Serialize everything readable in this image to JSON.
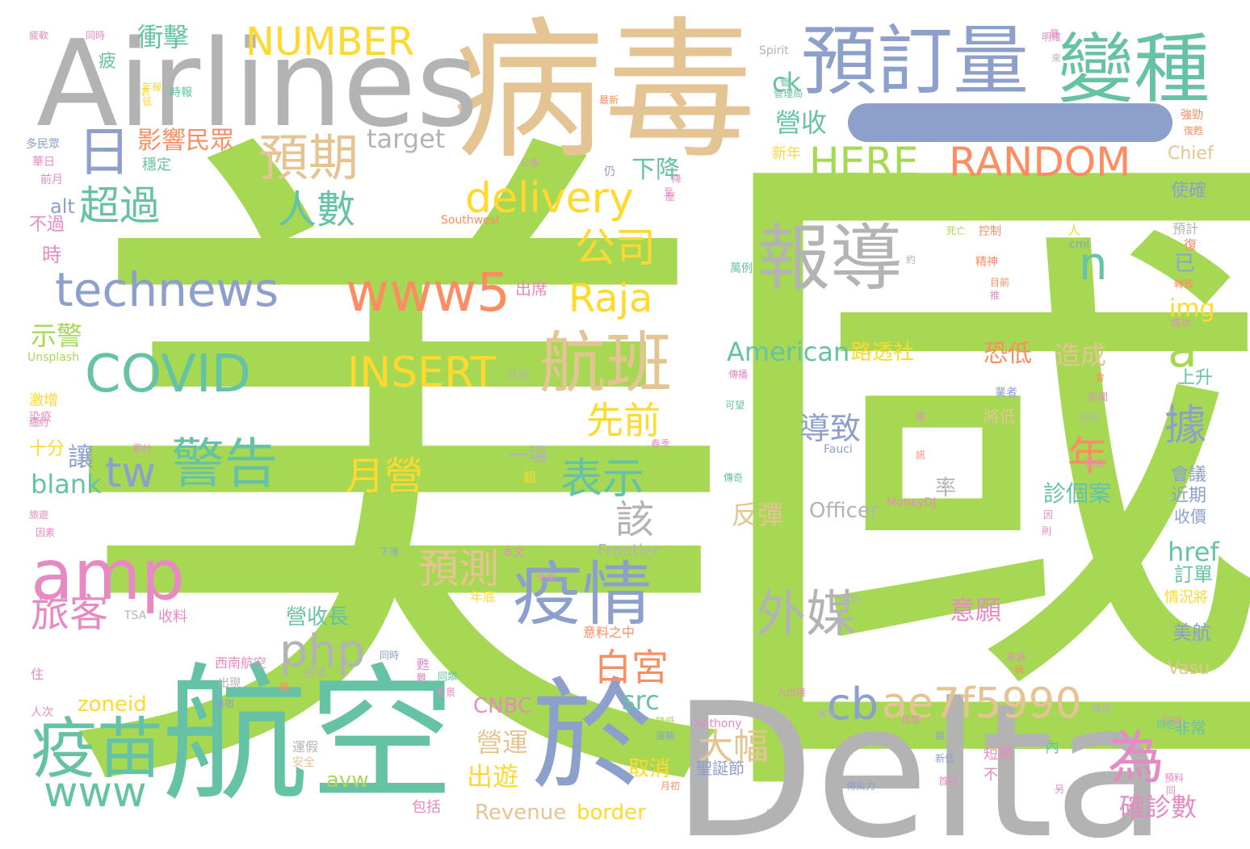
{
  "word_cloud": {
    "words": [
      {
        "text": "美國",
        "color": "#a6d854"
      },
      {
        "text": "Delta",
        "color": "#b3b3b3"
      },
      {
        "text": "病毒",
        "color": "#e5c494"
      },
      {
        "text": "航空",
        "color": "#66c2a5"
      },
      {
        "text": "Airlines",
        "color": "#b3b3b3"
      },
      {
        "text": "預訂量",
        "color": "#8da0cb"
      },
      {
        "text": "變種",
        "color": "#66c2a5"
      },
      {
        "text": "於",
        "color": "#8da0cb"
      },
      {
        "text": "疫苗",
        "color": "#66c2a5"
      },
      {
        "text": "疫情",
        "color": "#8da0cb"
      },
      {
        "text": "報導",
        "color": "#b3b3b3"
      },
      {
        "text": "amp",
        "color": "#e78ac3"
      },
      {
        "text": "航班",
        "color": "#e5c494"
      },
      {
        "text": "technews",
        "color": "#8da0cb"
      },
      {
        "text": "www5",
        "color": "#fc8d62"
      },
      {
        "text": "COVID",
        "color": "#66c2a5"
      },
      {
        "text": "delivery",
        "color": "#ffd92f"
      },
      {
        "text": "HERE",
        "color": "#a6d854"
      },
      {
        "text": "RANDOM",
        "color": "#fc8d62"
      },
      {
        "text": "NUMBER",
        "color": "#ffd92f"
      },
      {
        "text": "ae7f5990",
        "color": "#e5c494"
      },
      {
        "text": "警告",
        "color": "#66c2a5"
      },
      {
        "text": "預期",
        "color": "#e5c494"
      },
      {
        "text": "外媒",
        "color": "#b3b3b3"
      },
      {
        "text": "www",
        "color": "#66c2a5"
      },
      {
        "text": "INSERT",
        "color": "#ffd92f"
      },
      {
        "text": "php",
        "color": "#b3b3b3"
      },
      {
        "text": "Raja",
        "color": "#ffd92f"
      },
      {
        "text": "為",
        "color": "#e78ac3"
      },
      {
        "text": "超過",
        "color": "#66c2a5"
      },
      {
        "text": "人數",
        "color": "#66c2a5"
      },
      {
        "text": "公司",
        "color": "#ffd92f"
      },
      {
        "text": "旅客",
        "color": "#e78ac3"
      },
      {
        "text": "預測",
        "color": "#e5c494"
      },
      {
        "text": "月營",
        "color": "#ffd92f"
      },
      {
        "text": "月",
        "color": "#a6d854"
      },
      {
        "text": "tw",
        "color": "#8da0cb"
      },
      {
        "text": "表示",
        "color": "#66c2a5"
      },
      {
        "text": "cb",
        "color": "#8da0cb"
      },
      {
        "text": "日",
        "color": "#8da0cb"
      },
      {
        "text": "據",
        "color": "#8da0cb"
      },
      {
        "text": "n",
        "color": "#66c2a5"
      },
      {
        "text": "a",
        "color": "#a6d854"
      },
      {
        "text": "年",
        "color": "#fc8d62"
      },
      {
        "text": "白宮",
        "color": "#fc8d62"
      },
      {
        "text": "先前",
        "color": "#ffd92f"
      },
      {
        "text": "該",
        "color": "#b3b3b3"
      },
      {
        "text": "大幅",
        "color": "#e5c494"
      },
      {
        "text": "導致",
        "color": "#8da0cb"
      },
      {
        "text": "American",
        "color": "#66c2a5"
      },
      {
        "text": "影響民眾",
        "color": "#fc8d62"
      },
      {
        "text": "衝擊",
        "color": "#66c2a5"
      },
      {
        "text": "target",
        "color": "#b3b3b3"
      },
      {
        "text": "下降",
        "color": "#66c2a5"
      },
      {
        "text": "營收",
        "color": "#66c2a5"
      },
      {
        "text": "ck",
        "color": "#66c2a5"
      },
      {
        "text": "示警",
        "color": "#a6d854"
      },
      {
        "text": "讓",
        "color": "#8da0cb"
      },
      {
        "text": "blank",
        "color": "#66c2a5"
      },
      {
        "text": "alt",
        "color": "#8da0cb"
      },
      {
        "text": "不過",
        "color": "#e78ac3"
      },
      {
        "text": "時",
        "color": "#e78ac3"
      },
      {
        "text": "十分",
        "color": "#ffd92f"
      },
      {
        "text": "對",
        "color": "#a6d854"
      },
      {
        "text": "營收長",
        "color": "#66c2a5"
      },
      {
        "text": "一場",
        "color": "#b3b3b3"
      },
      {
        "text": "路透社",
        "color": "#ffd92f"
      },
      {
        "text": "恐低",
        "color": "#fc8d62"
      },
      {
        "text": "造成",
        "color": "#e5c494"
      },
      {
        "text": "反彈",
        "color": "#e5c494"
      },
      {
        "text": "Officer",
        "color": "#b3b3b3"
      },
      {
        "text": "意願",
        "color": "#e78ac3"
      },
      {
        "text": "率",
        "color": "#b3b3b3"
      },
      {
        "text": "診個案",
        "color": "#66c2a5"
      },
      {
        "text": "img",
        "color": "#ffd92f"
      },
      {
        "text": "href",
        "color": "#66c2a5"
      },
      {
        "text": "src",
        "color": "#66c2a5"
      },
      {
        "text": "zoneid",
        "color": "#ffd92f"
      },
      {
        "text": "avw",
        "color": "#a6d854"
      },
      {
        "text": "出遊",
        "color": "#ffd92f"
      },
      {
        "text": "營運",
        "color": "#e5c494"
      },
      {
        "text": "取消",
        "color": "#ffd92f"
      },
      {
        "text": "CNBC",
        "color": "#e78ac3"
      },
      {
        "text": "border",
        "color": "#ffd92f"
      },
      {
        "text": "Revenue",
        "color": "#e5c494"
      },
      {
        "text": "確診數",
        "color": "#e78ac3"
      },
      {
        "text": "Vasu",
        "color": "#e5c494"
      },
      {
        "text": "Frontier",
        "color": "#b3b3b3"
      },
      {
        "text": "Chief",
        "color": "#e5c494"
      },
      {
        "text": "Spirit",
        "color": "#b3b3b3"
      },
      {
        "text": "Southwest",
        "color": "#fc8d62"
      },
      {
        "text": "Unsplash",
        "color": "#a6d854"
      },
      {
        "text": "Fauci",
        "color": "#8da0cb"
      },
      {
        "text": "MoneyDJ",
        "color": "#e78ac3"
      },
      {
        "text": "Anthony",
        "color": "#e78ac3"
      },
      {
        "text": "TSA",
        "color": "#b3b3b3"
      },
      {
        "text": "cmi",
        "color": "#8da0cb"
      },
      {
        "text": "美航",
        "color": "#8da0cb"
      },
      {
        "text": "訂單",
        "color": "#66c2a5"
      },
      {
        "text": "收價",
        "color": "#8da0cb"
      },
      {
        "text": "近期",
        "color": "#8da0cb"
      },
      {
        "text": "會議",
        "color": "#8da0cb"
      },
      {
        "text": "上升",
        "color": "#66c2a5"
      },
      {
        "text": "使確",
        "color": "#8da0cb"
      },
      {
        "text": "預計",
        "color": "#b3b3b3"
      },
      {
        "text": "已",
        "color": "#8da0cb"
      },
      {
        "text": "新年",
        "color": "#ffd92f"
      },
      {
        "text": "出席",
        "color": "#e78ac3"
      },
      {
        "text": "收料",
        "color": "#e78ac3"
      },
      {
        "text": "非常",
        "color": "#66c2a5"
      },
      {
        "text": "短期",
        "color": "#e78ac3"
      },
      {
        "text": "將低",
        "color": "#e5c494"
      },
      {
        "text": "激增",
        "color": "#ffd92f"
      },
      {
        "text": "染疫",
        "color": "#e78ac3"
      },
      {
        "text": "穩定",
        "color": "#66c2a5"
      },
      {
        "text": "疲",
        "color": "#66c2a5"
      },
      {
        "text": "年底",
        "color": "#ffd92f"
      },
      {
        "text": "西南航空",
        "color": "#e78ac3"
      },
      {
        "text": "聖誕節",
        "color": "#8da0cb"
      },
      {
        "text": "意料之中",
        "color": "#fc8d62"
      },
      {
        "text": "包括",
        "color": "#e78ac3"
      },
      {
        "text": "運假",
        "color": "#b3b3b3"
      },
      {
        "text": "安全",
        "color": "#e5c494"
      },
      {
        "text": "不",
        "color": "#e78ac3"
      },
      {
        "text": "內",
        "color": "#66c2a5"
      },
      {
        "text": "情況將",
        "color": "#ffd92f"
      },
      {
        "text": "人",
        "color": "#ffd92f"
      },
      {
        "text": "住",
        "color": "#e78ac3"
      },
      {
        "text": "人次",
        "color": "#e78ac3"
      },
      {
        "text": "超",
        "color": "#ffd92f"
      },
      {
        "text": "本文",
        "color": "#e78ac3"
      },
      {
        "text": "下滑",
        "color": "#8da0cb"
      },
      {
        "text": "多民眾",
        "color": "#8da0cb"
      },
      {
        "text": "華日",
        "color": "#e78ac3"
      },
      {
        "text": "前月",
        "color": "#e78ac3"
      },
      {
        "text": "時報",
        "color": "#66c2a5"
      },
      {
        "text": "同時",
        "color": "#e78ac3"
      },
      {
        "text": "年報",
        "color": "#ffd92f"
      },
      {
        "text": "管理局",
        "color": "#66c2a5"
      },
      {
        "text": "最新",
        "color": "#fc8d62"
      },
      {
        "text": "公布",
        "color": "#e78ac3"
      },
      {
        "text": "仍",
        "color": "#8da0cb"
      },
      {
        "text": "至",
        "color": "#e78ac3"
      },
      {
        "text": "約",
        "color": "#b3b3b3"
      },
      {
        "text": "死亡",
        "color": "#a6d854"
      },
      {
        "text": "控制",
        "color": "#fc8d62"
      },
      {
        "text": "精神",
        "color": "#fc8d62"
      },
      {
        "text": "目前",
        "color": "#fc8d62"
      },
      {
        "text": "萬例",
        "color": "#66c2a5"
      },
      {
        "text": "轉載",
        "color": "#fc8d62"
      },
      {
        "text": "成功",
        "color": "#e78ac3"
      },
      {
        "text": "復",
        "color": "#fc8d62"
      },
      {
        "text": "強勁",
        "color": "#fc8d62"
      },
      {
        "text": "復甦",
        "color": "#fc8d62"
      },
      {
        "text": "來",
        "color": "#b3b3b3"
      },
      {
        "text": "日益",
        "color": "#b3b3b3"
      },
      {
        "text": "防疫",
        "color": "#e78ac3"
      },
      {
        "text": "新聞",
        "color": "#e78ac3"
      },
      {
        "text": "同倍",
        "color": "#b3b3b3"
      },
      {
        "text": "業者",
        "color": "#8da0cb"
      },
      {
        "text": "會",
        "color": "#fc8d62"
      },
      {
        "text": "可望",
        "color": "#66c2a5"
      },
      {
        "text": "傳播",
        "color": "#e78ac3"
      },
      {
        "text": "傳奇",
        "color": "#66c2a5"
      },
      {
        "text": "疫",
        "color": "#e78ac3"
      },
      {
        "text": "春季",
        "color": "#e78ac3"
      },
      {
        "text": "訊",
        "color": "#fc8d62"
      },
      {
        "text": "抗疫",
        "color": "#b3b3b3"
      },
      {
        "text": "全美",
        "color": "#e78ac3"
      },
      {
        "text": "平均",
        "color": "#b3b3b3"
      },
      {
        "text": "來源",
        "color": "#e78ac3"
      },
      {
        "text": "入出境",
        "color": "#e78ac3"
      },
      {
        "text": "確診",
        "color": "#b3b3b3"
      },
      {
        "text": "機場",
        "color": "#b3b3b3"
      },
      {
        "text": "首度",
        "color": "#e78ac3"
      },
      {
        "text": "新低",
        "color": "#8da0cb"
      },
      {
        "text": "首日",
        "color": "#e78ac3"
      },
      {
        "text": "傳染力",
        "color": "#8da0cb"
      },
      {
        "text": "月初",
        "color": "#fc8d62"
      },
      {
        "text": "降低",
        "color": "#a6d854"
      },
      {
        "text": "運輸",
        "color": "#8da0cb"
      },
      {
        "text": "同類",
        "color": "#66c2a5"
      },
      {
        "text": "甦",
        "color": "#e78ac3"
      },
      {
        "text": "出現",
        "color": "#b3b3b3"
      },
      {
        "text": "還需",
        "color": "#b3b3b3"
      },
      {
        "text": "萬",
        "color": "#fc8d62"
      },
      {
        "text": "疲軟",
        "color": "#e78ac3"
      },
      {
        "text": "因素",
        "color": "#e78ac3"
      },
      {
        "text": "旅遊",
        "color": "#e78ac3"
      },
      {
        "text": "細約",
        "color": "#e78ac3"
      },
      {
        "text": "無宿",
        "color": "#8da0cb"
      },
      {
        "text": "前景",
        "color": "#e78ac3"
      },
      {
        "text": "同時",
        "color": "#8da0cb"
      },
      {
        "text": "明確",
        "color": "#e78ac3"
      },
      {
        "text": "預料",
        "color": "#e78ac3"
      },
      {
        "text": "同等",
        "color": "#e78ac3"
      },
      {
        "text": "累計",
        "color": "#e78ac3"
      },
      {
        "text": "因",
        "color": "#e78ac3"
      },
      {
        "text": "表",
        "color": "#ffd92f"
      },
      {
        "text": "壓",
        "color": "#e78ac3"
      },
      {
        "text": "同倍",
        "color": "#66c2a5"
      },
      {
        "text": "推",
        "color": "#e78ac3"
      },
      {
        "text": "總",
        "color": "#8da0cb"
      },
      {
        "text": "管",
        "color": "#66c2a5"
      },
      {
        "text": "低",
        "color": "#ffd92f"
      },
      {
        "text": "降",
        "color": "#e78ac3"
      },
      {
        "text": "同",
        "color": "#e78ac3"
      },
      {
        "text": "另",
        "color": "#e78ac3"
      },
      {
        "text": "則",
        "color": "#e78ac3"
      },
      {
        "text": "難",
        "color": "#e78ac3"
      },
      {
        "text": "稱",
        "color": "#fc8d62"
      },
      {
        "text": "暴",
        "color": "#e78ac3"
      }
    ]
  }
}
